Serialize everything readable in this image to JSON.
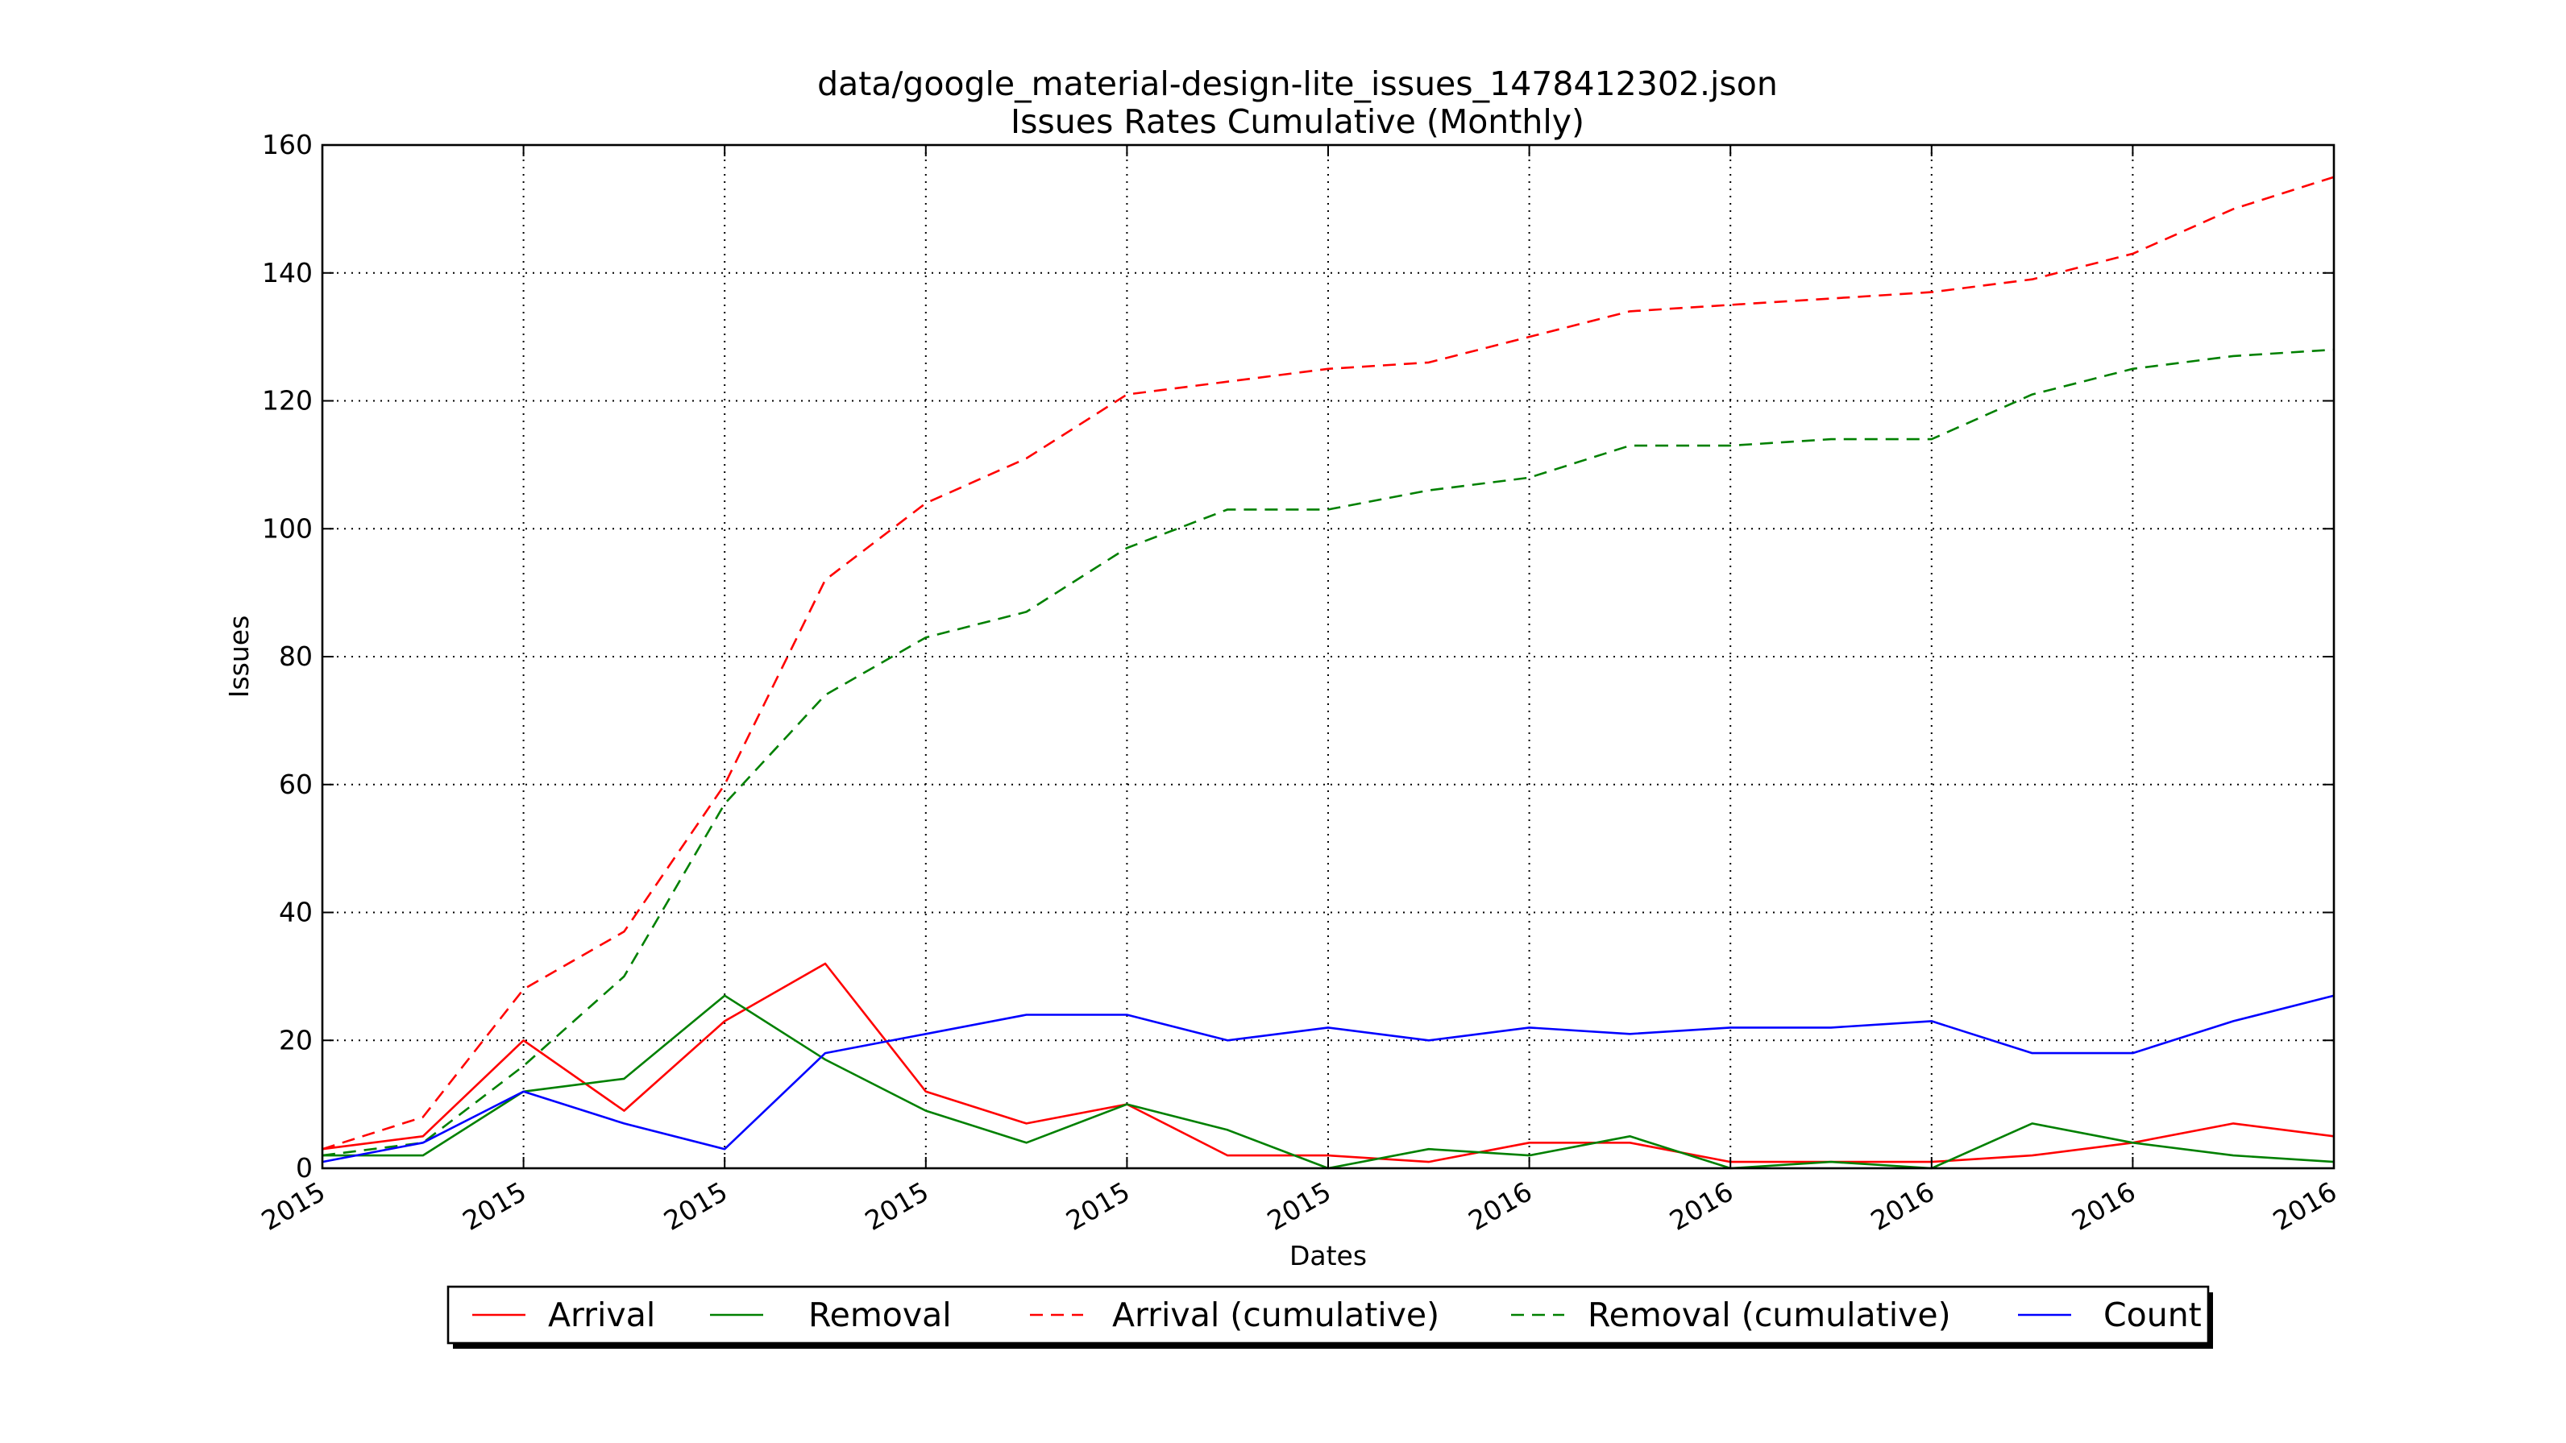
{
  "chart_data": {
    "type": "line",
    "title": "data/google_material-design-lite_issues_1478412302.json",
    "subtitle": "Issues Rates Cumulative (Monthly)",
    "xlabel": "Dates",
    "ylabel": "Issues",
    "ylim": [
      0,
      160
    ],
    "yticks": [
      "0",
      "20",
      "40",
      "60",
      "80",
      "100",
      "120",
      "140",
      "160"
    ],
    "xticks": [
      "2015",
      "2015",
      "2015",
      "2015",
      "2015",
      "2015",
      "2016",
      "2016",
      "2016",
      "2016",
      "2016"
    ],
    "x": [
      "2015-01",
      "2015-02",
      "2015-03",
      "2015-04",
      "2015-05",
      "2015-06",
      "2015-07",
      "2015-08",
      "2015-09",
      "2015-10",
      "2015-11",
      "2015-12",
      "2016-01",
      "2016-02",
      "2016-03",
      "2016-04",
      "2016-05",
      "2016-06",
      "2016-07",
      "2016-08",
      "2016-09"
    ],
    "grid": true,
    "legend_position": "bottom-center",
    "series": [
      {
        "name": "Arrival",
        "color": "#ff0000",
        "dashed": false,
        "values": [
          3,
          5,
          20,
          9,
          23,
          32,
          12,
          7,
          10,
          2,
          2,
          1,
          4,
          4,
          1,
          1,
          1,
          2,
          4,
          7,
          5
        ]
      },
      {
        "name": "Removal",
        "color": "#008000",
        "dashed": false,
        "values": [
          2,
          2,
          12,
          14,
          27,
          17,
          9,
          4,
          10,
          6,
          0,
          3,
          2,
          5,
          0,
          1,
          0,
          7,
          4,
          2,
          1
        ]
      },
      {
        "name": "Arrival (cumulative)",
        "color": "#ff0000",
        "dashed": true,
        "values": [
          3,
          8,
          28,
          37,
          60,
          92,
          104,
          111,
          121,
          123,
          125,
          126,
          130,
          134,
          135,
          136,
          137,
          139,
          143,
          150,
          155
        ]
      },
      {
        "name": "Removal (cumulative)",
        "color": "#008000",
        "dashed": true,
        "values": [
          2,
          4,
          16,
          30,
          57,
          74,
          83,
          87,
          97,
          103,
          103,
          106,
          108,
          113,
          113,
          114,
          114,
          121,
          125,
          127,
          128
        ]
      },
      {
        "name": "Count",
        "color": "#0000ff",
        "dashed": false,
        "values": [
          1,
          4,
          12,
          7,
          3,
          18,
          21,
          24,
          24,
          20,
          22,
          20,
          22,
          21,
          22,
          22,
          23,
          18,
          18,
          23,
          27
        ]
      }
    ]
  }
}
